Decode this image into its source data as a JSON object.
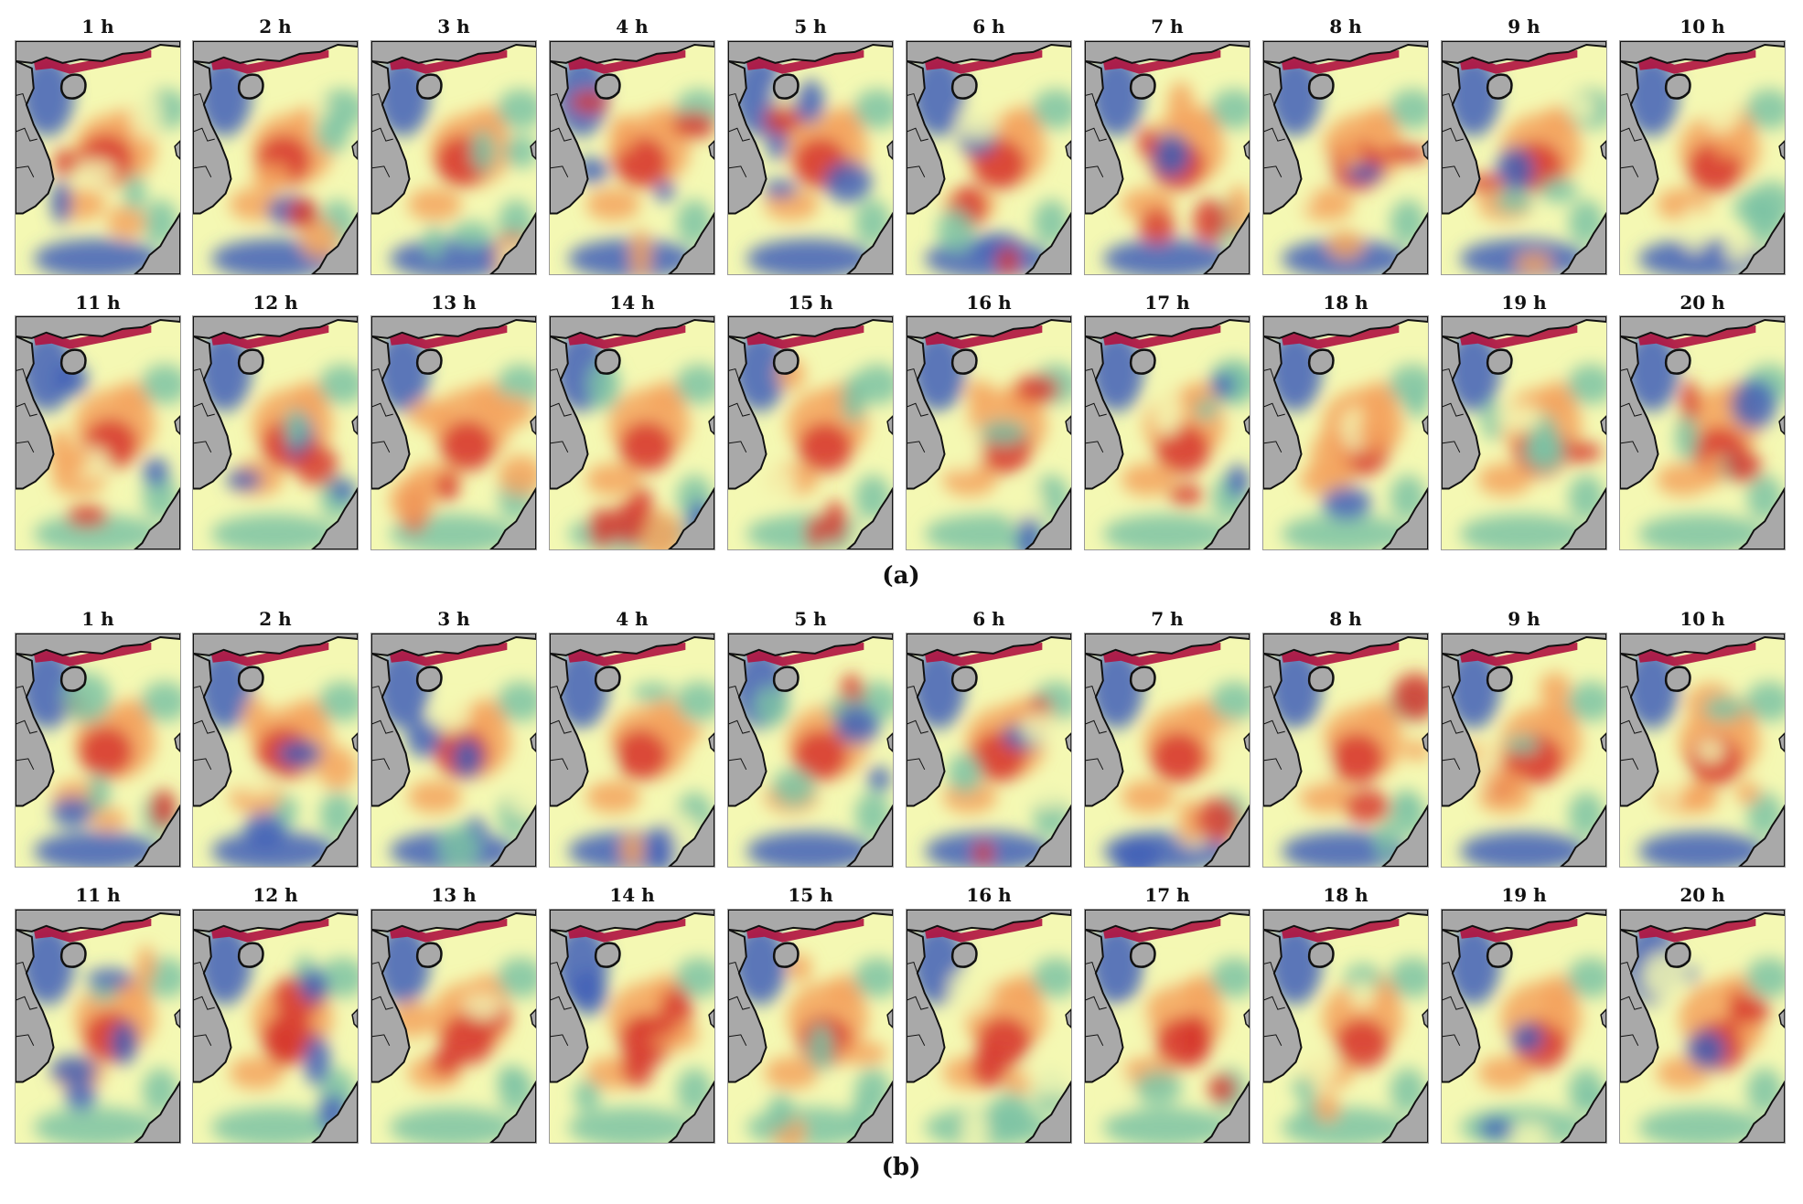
{
  "figure": {
    "groups": [
      {
        "label": "(a)",
        "rows": [
          [
            "1 h",
            "2 h",
            "3 h",
            "4 h",
            "5 h",
            "6 h",
            "7 h",
            "8 h",
            "9 h",
            "10 h"
          ],
          [
            "11 h",
            "12 h",
            "13 h",
            "14 h",
            "15 h",
            "16 h",
            "17 h",
            "18 h",
            "19 h",
            "20 h"
          ]
        ]
      },
      {
        "label": "(b)",
        "rows": [
          [
            "1 h",
            "2 h",
            "3 h",
            "4 h",
            "5 h",
            "6 h",
            "7 h",
            "8 h",
            "9 h",
            "10 h"
          ],
          [
            "11 h",
            "12 h",
            "13 h",
            "14 h",
            "15 h",
            "16 h",
            "17 h",
            "18 h",
            "19 h",
            "20 h"
          ]
        ]
      }
    ]
  },
  "colors": {
    "land": "#a9a9a9",
    "coast": "#111111",
    "scale_low": "#3f5fb8",
    "scale_mid_low": "#7cc3a5",
    "scale_mid": "#f4f8b3",
    "scale_mid_high": "#f4a35e",
    "scale_high": "#d7382f",
    "scale_extreme": "#b0123f"
  }
}
